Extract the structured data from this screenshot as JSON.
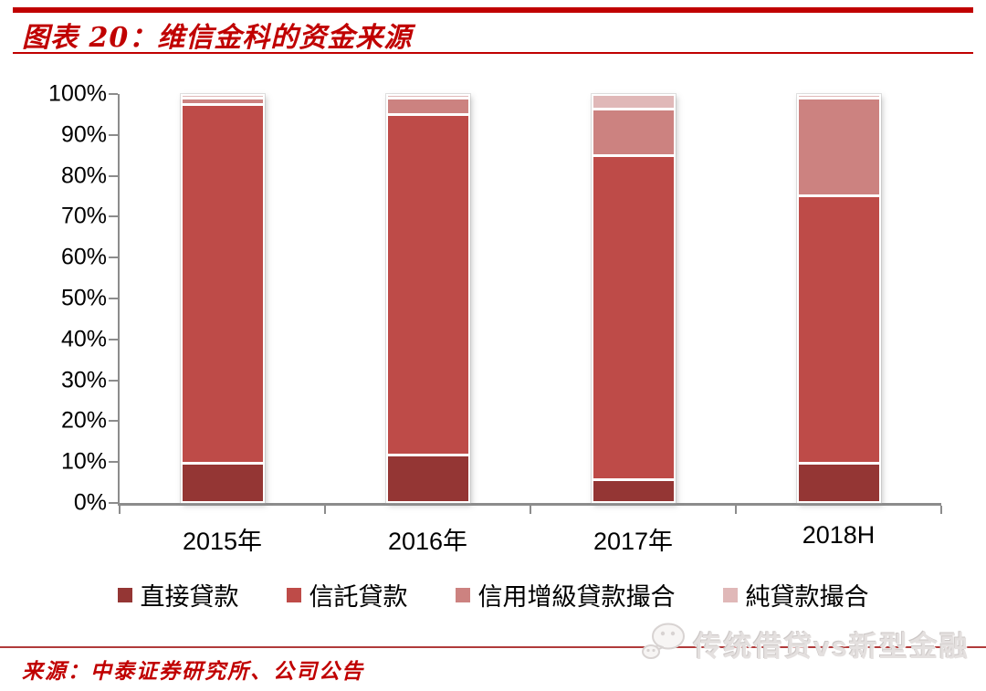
{
  "header": {
    "title": "图表 20：维信金科的资金来源"
  },
  "chart_data": {
    "type": "bar",
    "stacked": true,
    "unit": "percent",
    "title": "维信金科的资金来源",
    "categories": [
      "2015年",
      "2016年",
      "2017年",
      "2018H"
    ],
    "series": [
      {
        "name": "直接貸款",
        "color": "#943634",
        "values": [
          9,
          11,
          5,
          9
        ]
      },
      {
        "name": "信託貸款",
        "color": "#BE4B48",
        "values": [
          88.5,
          84,
          80,
          66
        ]
      },
      {
        "name": "信用增級貸款撮合",
        "color": "#CC8280",
        "values": [
          1.5,
          4,
          11.5,
          24
        ]
      },
      {
        "name": "純貸款撮合",
        "color": "#E0B8B8",
        "values": [
          1,
          1,
          3.5,
          1
        ]
      }
    ],
    "xlabel": "",
    "ylabel": "",
    "ylim": [
      0,
      100
    ],
    "y_ticks": [
      "0%",
      "10%",
      "20%",
      "30%",
      "40%",
      "50%",
      "60%",
      "70%",
      "80%",
      "90%",
      "100%"
    ],
    "grid": false,
    "legend_position": "bottom"
  },
  "footer": {
    "source": "来源：中泰证券研究所、公司公告",
    "watermark_text": "传统借贷vs新型金融",
    "watermark_icon": "wechat-bubbles-icon"
  },
  "colors": {
    "accent_red": "#C00000",
    "bottom_rule_red": "#B03B3B",
    "axis_gray": "#8C8C8C",
    "series_direct_loan": "#943634",
    "series_trust_loan": "#BE4B48",
    "series_credit_enhanced": "#CC8280",
    "series_pure_facilitation": "#E0B8B8"
  }
}
